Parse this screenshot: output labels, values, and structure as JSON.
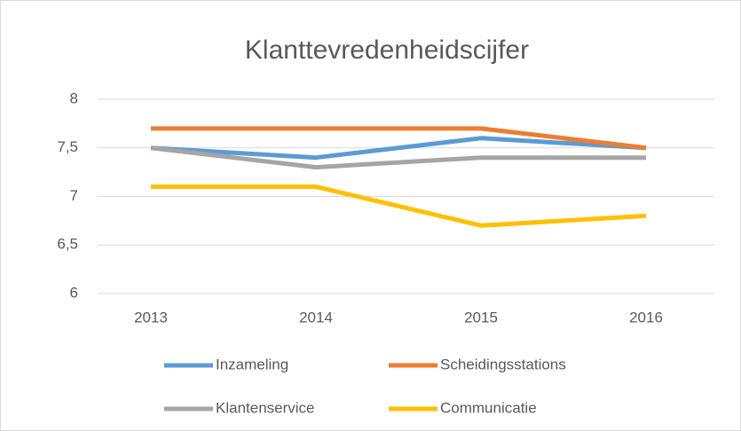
{
  "chart_data": {
    "type": "line",
    "title": "Klanttevredenheidscijfer",
    "categories": [
      "2013",
      "2014",
      "2015",
      "2016"
    ],
    "series": [
      {
        "name": "Inzameling",
        "color": "#5b9bd5",
        "values": [
          7.5,
          7.4,
          7.6,
          7.5
        ]
      },
      {
        "name": "Scheidingsstations",
        "color": "#ed7d31",
        "values": [
          7.7,
          7.7,
          7.7,
          7.5
        ]
      },
      {
        "name": "Klantenservice",
        "color": "#a5a5a5",
        "values": [
          7.5,
          7.3,
          7.4,
          7.4
        ]
      },
      {
        "name": "Communicatie",
        "color": "#ffc000",
        "values": [
          7.1,
          7.1,
          6.7,
          6.8
        ]
      }
    ],
    "ylim": [
      6,
      8
    ],
    "yticks": [
      6,
      {
        "value": 6.5,
        "label": "6,5"
      },
      7,
      {
        "value": 7.5,
        "label": "7,5"
      },
      8
    ],
    "grid": true,
    "legend": "bottom"
  }
}
